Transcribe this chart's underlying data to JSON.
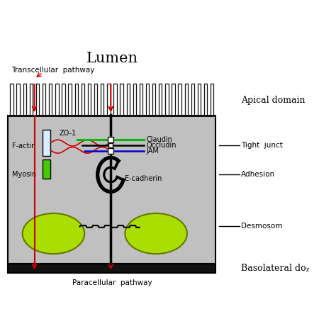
{
  "title_top": "Lumen",
  "title_bottom": "Paracellular  pathway",
  "label_apical": "Apical domain",
  "label_basolateral": "Basolateral doᵪ",
  "label_tight": "Tight  junct",
  "label_adhesion": "Adhesion",
  "label_desmosome": "Desmosom",
  "label_transcellular": "Transcellular  pathway",
  "label_factin": "F-actin",
  "label_myosin": "Myosin",
  "label_zo1": "ZO-1",
  "label_claudin": "Claudin",
  "label_occludin": "Occludin",
  "label_jam": "JAM",
  "label_ecadherin": "E-cadherin",
  "bg_cell": "#c0c0c0",
  "bg_base": "#111111",
  "bg_white": "#ffffff",
  "color_red": "#cc0000",
  "color_green_line": "#00bb00",
  "color_blue": "#0000cc",
  "color_black": "#000000",
  "color_factin_box": "#d8eeff",
  "color_myosin_box": "#44cc00",
  "microvilli_color": "#111111",
  "nucleus_color": "#aadd00",
  "nucleus_edge": "#667700",
  "figsize": [
    4.74,
    4.74
  ],
  "dpi": 100
}
